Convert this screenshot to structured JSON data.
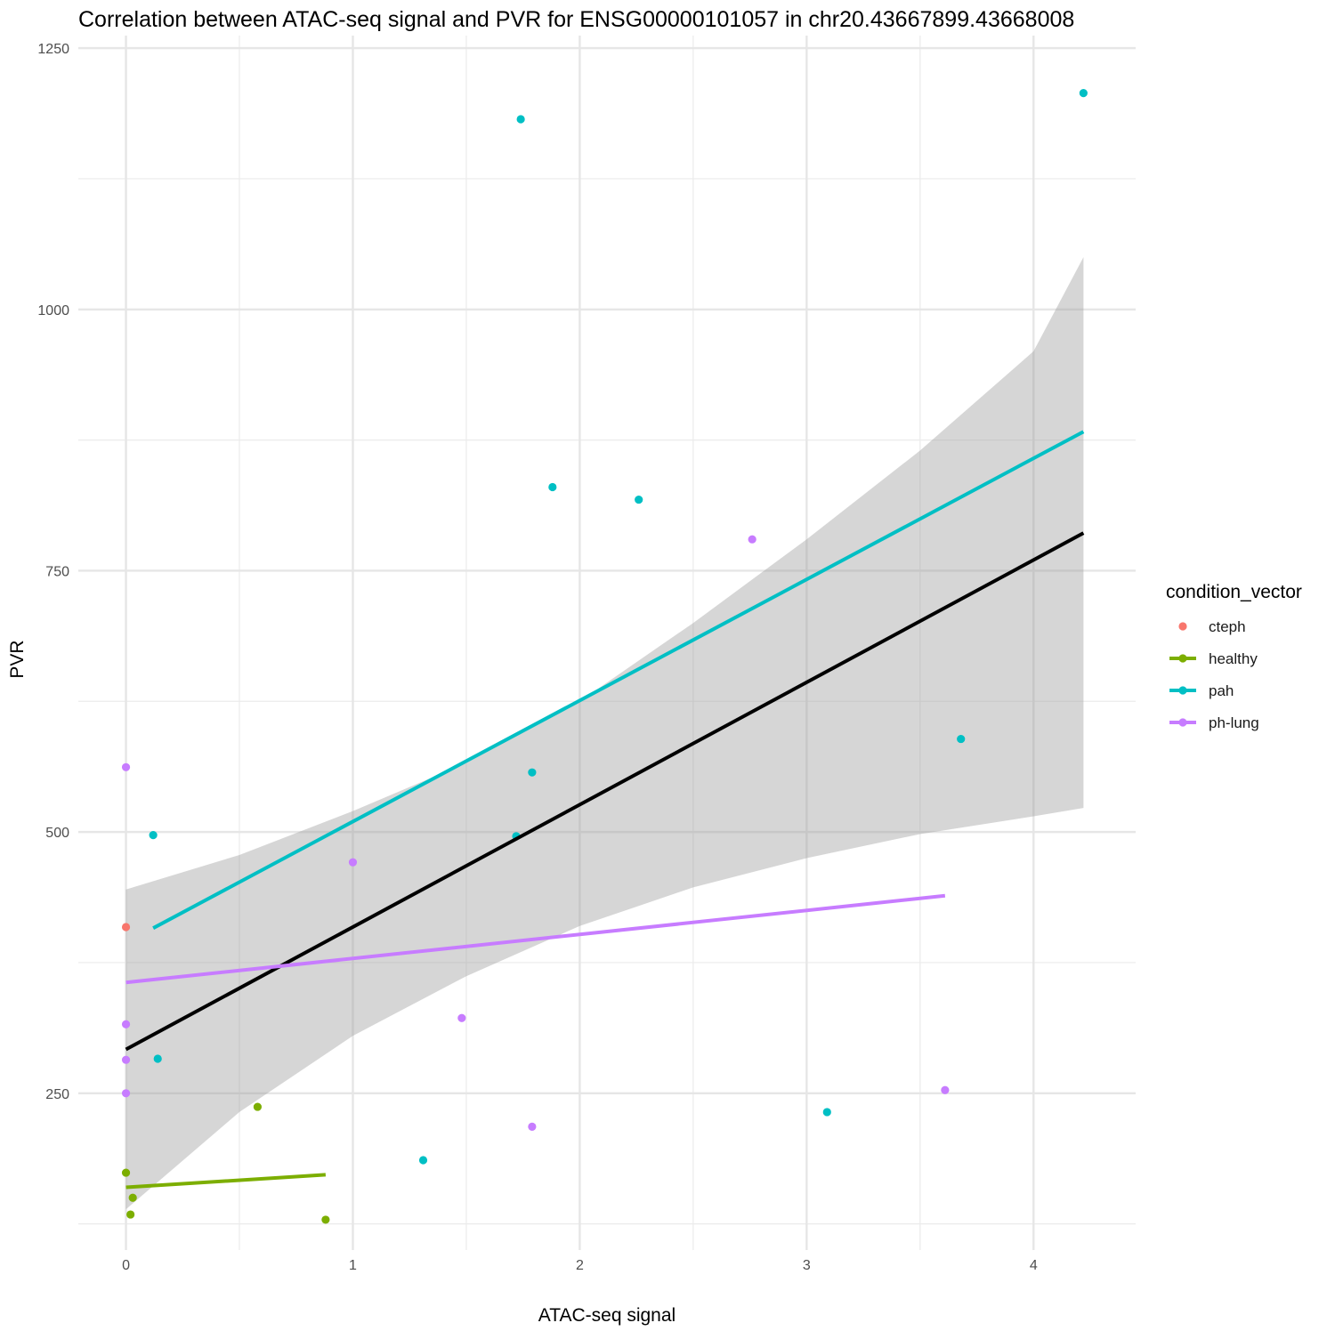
{
  "chart_data": {
    "type": "scatter",
    "title": "Correlation between ATAC-seq signal and PVR for ENSG00000101057 in chr20.43667899.43668008",
    "xlabel": "ATAC-seq signal",
    "ylabel": "PVR",
    "xlim": [
      -0.21,
      4.45
    ],
    "ylim": [
      100,
      1262
    ],
    "x_ticks": [
      0,
      1,
      2,
      3,
      4
    ],
    "x_tick_labels": [
      "0",
      "1",
      "2",
      "3",
      "4"
    ],
    "x_minor_ticks": [
      0.5,
      1.5,
      2.5,
      3.5
    ],
    "y_ticks": [
      250,
      500,
      750,
      1000,
      1250
    ],
    "y_tick_labels": [
      "250",
      "500",
      "750",
      "1000",
      "1250"
    ],
    "y_minor_ticks": [
      125,
      375,
      625,
      875,
      1125
    ],
    "grid": true,
    "legend": {
      "title": "condition_vector",
      "position": "right",
      "entries": [
        {
          "label": "cteph",
          "color": "#F8766D",
          "has_line": false
        },
        {
          "label": "healthy",
          "color": "#7CAE00",
          "has_line": true
        },
        {
          "label": "pah",
          "color": "#00BFC4",
          "has_line": true
        },
        {
          "label": "ph-lung",
          "color": "#C77CFF",
          "has_line": true
        }
      ]
    },
    "series": [
      {
        "name": "cteph",
        "color": "#F8766D",
        "points": [
          [
            0.0,
            409
          ]
        ]
      },
      {
        "name": "healthy",
        "color": "#7CAE00",
        "points": [
          [
            0.0,
            174
          ],
          [
            0.03,
            150
          ],
          [
            0.02,
            134
          ],
          [
            0.58,
            237
          ],
          [
            0.88,
            129
          ]
        ]
      },
      {
        "name": "pah",
        "color": "#00BFC4",
        "points": [
          [
            1.74,
            1182
          ],
          [
            4.22,
            1207
          ],
          [
            1.88,
            830
          ],
          [
            2.26,
            818
          ],
          [
            0.12,
            497
          ],
          [
            1.79,
            557
          ],
          [
            1.72,
            496
          ],
          [
            3.68,
            589
          ],
          [
            0.14,
            283
          ],
          [
            1.31,
            186
          ],
          [
            3.09,
            232
          ]
        ]
      },
      {
        "name": "ph-lung",
        "color": "#C77CFF",
        "points": [
          [
            0.0,
            562
          ],
          [
            2.76,
            780
          ],
          [
            1.0,
            471
          ],
          [
            0.0,
            316
          ],
          [
            0.0,
            282
          ],
          [
            0.0,
            250
          ],
          [
            1.48,
            322
          ],
          [
            1.79,
            218
          ],
          [
            3.61,
            253
          ]
        ]
      }
    ],
    "fit_lines": [
      {
        "name": "overall",
        "color": "#000000",
        "x": [
          0.0,
          4.22
        ],
        "y": [
          292,
          786
        ]
      },
      {
        "name": "pah",
        "color": "#00BFC4",
        "x": [
          0.12,
          4.22
        ],
        "y": [
          408,
          883
        ]
      },
      {
        "name": "ph-lung",
        "color": "#C77CFF",
        "x": [
          0.0,
          3.61
        ],
        "y": [
          356,
          439
        ]
      },
      {
        "name": "healthy",
        "color": "#7CAE00",
        "x": [
          0.0,
          0.88
        ],
        "y": [
          160,
          172
        ]
      }
    ],
    "confidence_band": {
      "color": "#999999",
      "x": [
        0.0,
        0.5,
        1.0,
        1.5,
        2.0,
        2.5,
        3.0,
        3.5,
        4.0,
        4.22
      ],
      "upper": [
        445,
        478,
        520,
        566,
        625,
        700,
        780,
        865,
        960,
        1050
      ],
      "lower": [
        139,
        232,
        305,
        362,
        410,
        447,
        475,
        498,
        515,
        523
      ]
    }
  }
}
